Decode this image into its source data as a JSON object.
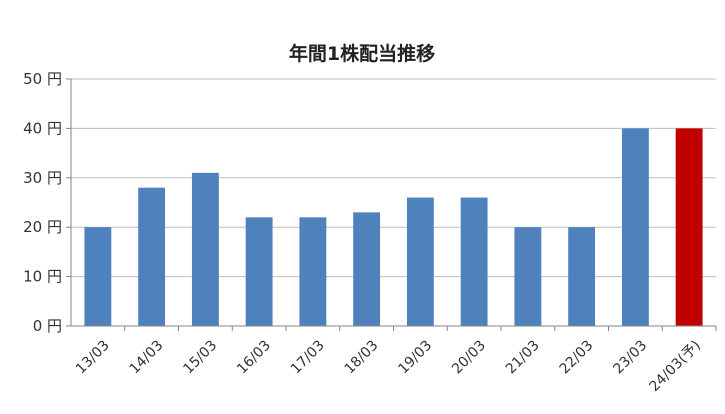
{
  "chart_data": {
    "type": "bar",
    "title": "年間1株配当推移",
    "xlabel": "",
    "ylabel": "",
    "ylim": [
      0,
      50
    ],
    "yticks": [
      0,
      10,
      20,
      30,
      40,
      50
    ],
    "ytick_labels": [
      "0 円",
      "10 円",
      "20 円",
      "30 円",
      "40 円",
      "50 円"
    ],
    "categories": [
      "13/03",
      "14/03",
      "15/03",
      "16/03",
      "17/03",
      "18/03",
      "19/03",
      "20/03",
      "21/03",
      "22/03",
      "23/03",
      "24/03(予)"
    ],
    "values": [
      20,
      28,
      31,
      22,
      22,
      23,
      26,
      26,
      20,
      20,
      40,
      40
    ],
    "highlight_index": 11,
    "grid": true,
    "legend": "none",
    "colors": {
      "bar": "#4f81bd",
      "highlight": "#c00000",
      "grid": "#bfbfbf",
      "axis": "#868686"
    }
  }
}
